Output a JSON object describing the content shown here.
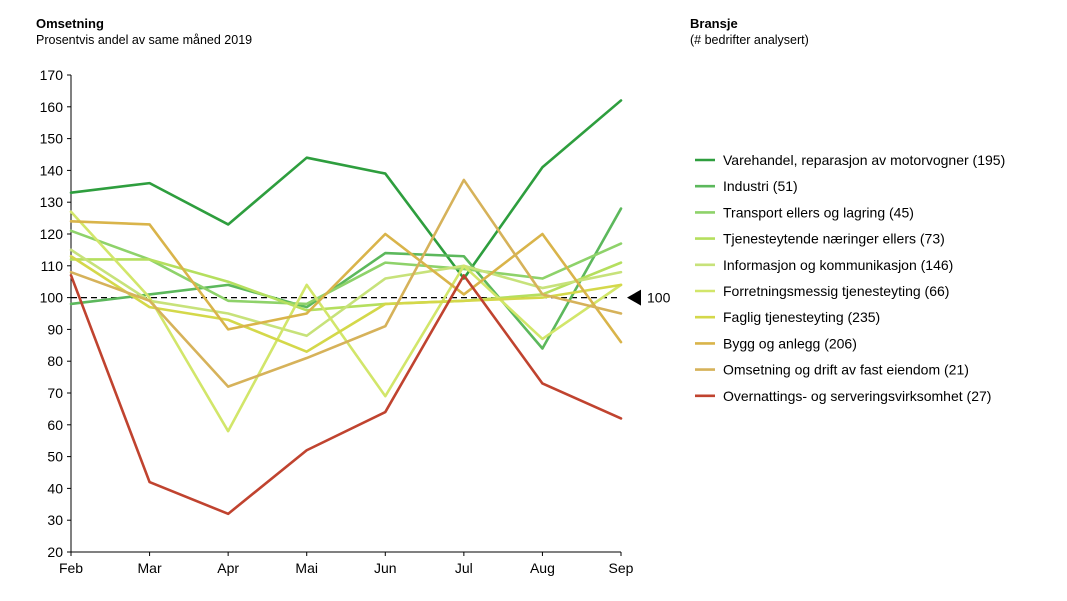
{
  "header": {
    "title": "Omsetning",
    "subtitle": "Prosentvis andel av same måned 2019"
  },
  "legend_header": {
    "title": "Bransje",
    "subtitle": "(# bedrifter analysert)"
  },
  "reference": {
    "label": "100",
    "value": 100
  },
  "chart_data": {
    "type": "line",
    "title": "Omsetning",
    "subtitle": "Prosentvis andel av same måned 2019",
    "x": [
      "Feb",
      "Mar",
      "Apr",
      "Mai",
      "Jun",
      "Jul",
      "Aug",
      "Sep"
    ],
    "ylim": [
      20,
      170
    ],
    "yticks": [
      20,
      30,
      40,
      50,
      60,
      70,
      80,
      90,
      100,
      110,
      120,
      130,
      140,
      150,
      160,
      170
    ],
    "grid": false,
    "legend_position": "right",
    "series": [
      {
        "name": "Varehandel, reparasjon av motorvogner (195)",
        "color": "#2e9e3e",
        "values": [
          133,
          136,
          123,
          144,
          139,
          106,
          141,
          162
        ]
      },
      {
        "name": "Industri (51)",
        "color": "#5cb85c",
        "values": [
          98,
          101,
          104,
          97,
          114,
          113,
          84,
          128
        ]
      },
      {
        "name": "Transport ellers og lagring (45)",
        "color": "#8ed26a",
        "values": [
          121,
          112,
          99,
          98,
          111,
          109,
          106,
          117
        ]
      },
      {
        "name": "Tjenesteytende næringer ellers (73)",
        "color": "#b5df5e",
        "values": [
          112,
          112,
          105,
          96,
          98,
          99,
          101,
          111
        ]
      },
      {
        "name": "Informasjon og kommunikasjon (146)",
        "color": "#c7e27a",
        "values": [
          115,
          99,
          95,
          88,
          106,
          110,
          103,
          108
        ]
      },
      {
        "name": "Forretningsmessig tjenesteyting (66)",
        "color": "#d2e66a",
        "values": [
          127,
          100,
          58,
          104,
          69,
          110,
          87,
          104
        ]
      },
      {
        "name": "Faglig tjenesteyting (235)",
        "color": "#d4d84a",
        "values": [
          113,
          97,
          93,
          83,
          98,
          99,
          100,
          104
        ]
      },
      {
        "name": "Bygg og anlegg (206)",
        "color": "#d9b44a",
        "values": [
          124,
          123,
          90,
          95,
          120,
          101,
          120,
          86
        ]
      },
      {
        "name": "Omsetning og drift av fast eiendom (21)",
        "color": "#d6b25a",
        "values": [
          108,
          99,
          72,
          81,
          91,
          137,
          101,
          95
        ]
      },
      {
        "name": "Overnattings- og serveringsvirksomhet (27)",
        "color": "#c0432f",
        "values": [
          107,
          42,
          32,
          52,
          64,
          107,
          73,
          62
        ]
      }
    ]
  }
}
